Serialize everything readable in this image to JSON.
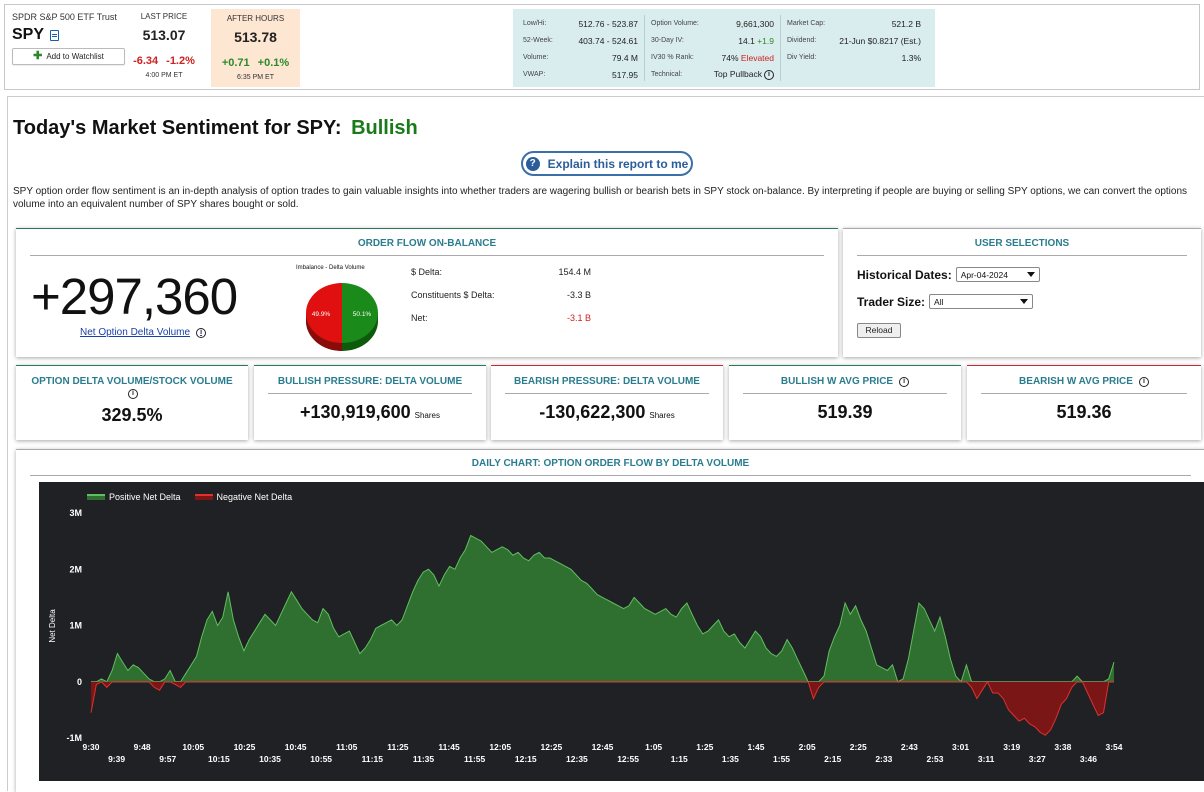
{
  "quote": {
    "name": "SPDR S&P 500 ETF Trust",
    "symbol": "SPY",
    "watchlist_label": "Add to Watchlist",
    "last": {
      "label": "LAST PRICE",
      "price": "513.07",
      "chg": "-6.34",
      "pct": "-1.2%",
      "time": "4:00 PM ET"
    },
    "after": {
      "label": "AFTER HOURS",
      "price": "513.78",
      "chg": "+0.71",
      "pct": "+0.1%",
      "time": "6:35 PM ET"
    },
    "stats": {
      "col1": [
        {
          "k": "Low/Hi:",
          "v": "512.76 - 523.87"
        },
        {
          "k": "52-Week:",
          "v": "403.74 - 524.61"
        },
        {
          "k": "Volume:",
          "v": "79.4 M"
        },
        {
          "k": "VWAP:",
          "v": "517.95"
        }
      ],
      "col2": [
        {
          "k": "Option Volume:",
          "v": "9,661,300"
        },
        {
          "k": "30-Day IV:",
          "v": "14.1",
          "v2": "+1.9"
        },
        {
          "k": "IV30 % Rank:",
          "v": "74%",
          "v2": "Elevated"
        },
        {
          "k": "Technical:",
          "v": "Top Pullback"
        }
      ],
      "col3": [
        {
          "k": "Market Cap:",
          "v": "521.2 B"
        },
        {
          "k": "Dividend:",
          "v": "21-Jun $0.8217 (Est.)"
        },
        {
          "k": "Div Yield:",
          "v": "1.3%"
        }
      ]
    },
    "colors": {
      "positive": "#2a8a2a",
      "negative": "#d02020",
      "after_hours_bg": "#fde6d2",
      "stats_bg": "#d9ecee"
    }
  },
  "page": {
    "title": "Today's Market Sentiment for SPY:",
    "sentiment": "Bullish",
    "explain_label": "Explain this report to me",
    "description": "SPY option order flow sentiment is an in-depth analysis of option trades to gain valuable insights into whether traders are wagering bullish or bearish bets in SPY stock on-balance. By interpreting if people are buying or selling SPY options, we can convert the options volume into an equivalent number of SPY shares bought or sold."
  },
  "order_flow": {
    "title": "ORDER FLOW ON-BALANCE",
    "big_value": "+297,360",
    "link_label": "Net Option Delta Volume",
    "pie_title": "Imbalance - Delta Volume",
    "pie": {
      "negative_pct": 49.9,
      "positive_pct": 50.1,
      "negative_label": "49.9%",
      "positive_label": "50.1%"
    },
    "rows": [
      {
        "k": "$ Delta:",
        "v": "154.4 M"
      },
      {
        "k": "Constituents $ Delta:",
        "v": "-3.3 B"
      },
      {
        "k": "Net:",
        "v": "-3.1 B"
      }
    ]
  },
  "user_selections": {
    "title": "USER SELECTIONS",
    "historical_label": "Historical Dates:",
    "historical_value": "Apr-04-2024",
    "trader_label": "Trader Size:",
    "trader_value": "All",
    "reload_label": "Reload"
  },
  "cards": [
    {
      "title": "OPTION DELTA VOLUME/STOCK VOLUME",
      "value": "329.5%",
      "unit": ""
    },
    {
      "title": "BULLISH PRESSURE: DELTA VOLUME",
      "value": "+130,919,600",
      "unit": "Shares"
    },
    {
      "title": "BEARISH PRESSURE: DELTA VOLUME",
      "value": "-130,622,300",
      "unit": "Shares"
    },
    {
      "title": "BULLISH W AVG PRICE",
      "value": "519.39",
      "unit": ""
    },
    {
      "title": "BEARISH W AVG PRICE",
      "value": "519.36",
      "unit": ""
    }
  ],
  "chart_title": "DAILY CHART: OPTION ORDER FLOW BY DELTA VOLUME",
  "chart_data": {
    "type": "area",
    "legend": [
      "Positive Net Delta",
      "Negative Net Delta"
    ],
    "ylabel": "Net Delta",
    "yticks": [
      "3M",
      "2M",
      "1M",
      "0",
      "-1M"
    ],
    "ylim": [
      -1000000,
      3000000
    ],
    "xticks_top": [
      "9:30",
      "9:48",
      "10:05",
      "10:25",
      "10:45",
      "11:05",
      "11:25",
      "11:45",
      "12:05",
      "12:25",
      "12:45",
      "1:05",
      "1:25",
      "1:45",
      "2:05",
      "2:25",
      "2:43",
      "3:01",
      "3:19",
      "3:38",
      "3:54"
    ],
    "xticks_bottom": [
      "9:39",
      "9:57",
      "10:15",
      "10:35",
      "10:55",
      "11:15",
      "11:35",
      "11:55",
      "12:15",
      "12:35",
      "12:55",
      "1:15",
      "1:35",
      "1:55",
      "2:15",
      "2:33",
      "2:53",
      "3:11",
      "3:27",
      "3:46"
    ],
    "colors": {
      "positive": "#2f6f2f",
      "negative": "#7a1616",
      "positive_line": "#5fbf5f",
      "negative_line": "#e03030"
    },
    "series": [
      {
        "name": "Net Delta",
        "points": [
          [
            0,
            -0.55
          ],
          [
            1,
            -0.05
          ],
          [
            2,
            0.05
          ],
          [
            3,
            -0.1
          ],
          [
            4,
            0.2
          ],
          [
            5,
            0.5
          ],
          [
            6,
            0.35
          ],
          [
            7,
            0.2
          ],
          [
            8,
            0.3
          ],
          [
            9,
            0.25
          ],
          [
            10,
            0.15
          ],
          [
            11,
            0.05
          ],
          [
            12,
            -0.1
          ],
          [
            13,
            -0.15
          ],
          [
            14,
            0.05
          ],
          [
            15,
            0.2
          ],
          [
            16,
            -0.05
          ],
          [
            17,
            -0.1
          ],
          [
            18,
            0.15
          ],
          [
            19,
            0.3
          ],
          [
            20,
            0.45
          ],
          [
            21,
            0.8
          ],
          [
            22,
            1.1
          ],
          [
            23,
            1.25
          ],
          [
            24,
            1.0
          ],
          [
            25,
            1.15
          ],
          [
            26,
            1.6
          ],
          [
            27,
            1.1
          ],
          [
            28,
            0.8
          ],
          [
            29,
            0.55
          ],
          [
            30,
            0.75
          ],
          [
            31,
            0.9
          ],
          [
            32,
            1.05
          ],
          [
            33,
            1.2
          ],
          [
            34,
            1.1
          ],
          [
            35,
            1.0
          ],
          [
            36,
            1.2
          ],
          [
            37,
            1.4
          ],
          [
            38,
            1.6
          ],
          [
            39,
            1.45
          ],
          [
            40,
            1.3
          ],
          [
            41,
            1.2
          ],
          [
            42,
            1.1
          ],
          [
            43,
            1.05
          ],
          [
            44,
            1.3
          ],
          [
            45,
            1.2
          ],
          [
            46,
            0.95
          ],
          [
            47,
            0.8
          ],
          [
            48,
            0.85
          ],
          [
            49,
            0.9
          ],
          [
            50,
            0.7
          ],
          [
            51,
            0.5
          ],
          [
            52,
            0.6
          ],
          [
            53,
            0.75
          ],
          [
            54,
            0.95
          ],
          [
            55,
            1.0
          ],
          [
            56,
            1.05
          ],
          [
            57,
            1.1
          ],
          [
            58,
            1.0
          ],
          [
            59,
            1.1
          ],
          [
            60,
            1.35
          ],
          [
            61,
            1.6
          ],
          [
            62,
            1.8
          ],
          [
            63,
            1.95
          ],
          [
            64,
            2.0
          ],
          [
            65,
            1.9
          ],
          [
            66,
            1.7
          ],
          [
            67,
            1.9
          ],
          [
            68,
            2.05
          ],
          [
            69,
            2.0
          ],
          [
            70,
            2.2
          ],
          [
            71,
            2.35
          ],
          [
            72,
            2.6
          ],
          [
            73,
            2.55
          ],
          [
            74,
            2.5
          ],
          [
            75,
            2.4
          ],
          [
            76,
            2.3
          ],
          [
            77,
            2.35
          ],
          [
            78,
            2.4
          ],
          [
            79,
            2.35
          ],
          [
            80,
            2.25
          ],
          [
            81,
            2.3
          ],
          [
            82,
            2.2
          ],
          [
            83,
            2.15
          ],
          [
            84,
            2.25
          ],
          [
            85,
            2.3
          ],
          [
            86,
            2.2
          ],
          [
            87,
            2.2
          ],
          [
            88,
            2.15
          ],
          [
            89,
            2.1
          ],
          [
            90,
            2.05
          ],
          [
            91,
            2.0
          ],
          [
            92,
            1.9
          ],
          [
            93,
            1.8
          ],
          [
            94,
            1.75
          ],
          [
            95,
            1.65
          ],
          [
            96,
            1.55
          ],
          [
            97,
            1.5
          ],
          [
            98,
            1.45
          ],
          [
            99,
            1.4
          ],
          [
            100,
            1.35
          ],
          [
            101,
            1.3
          ],
          [
            102,
            1.35
          ],
          [
            103,
            1.5
          ],
          [
            104,
            1.4
          ],
          [
            105,
            1.3
          ],
          [
            106,
            1.25
          ],
          [
            107,
            1.2
          ],
          [
            108,
            1.25
          ],
          [
            109,
            1.3
          ],
          [
            110,
            1.2
          ],
          [
            111,
            1.15
          ],
          [
            112,
            1.3
          ],
          [
            113,
            1.4
          ],
          [
            114,
            1.2
          ],
          [
            115,
            1.0
          ],
          [
            116,
            0.85
          ],
          [
            117,
            0.9
          ],
          [
            118,
            1.0
          ],
          [
            119,
            1.1
          ],
          [
            120,
            0.9
          ],
          [
            121,
            0.8
          ],
          [
            122,
            0.85
          ],
          [
            123,
            0.7
          ],
          [
            124,
            0.6
          ],
          [
            125,
            0.75
          ],
          [
            126,
            0.9
          ],
          [
            127,
            0.8
          ],
          [
            128,
            0.6
          ],
          [
            129,
            0.5
          ],
          [
            130,
            0.45
          ],
          [
            131,
            0.55
          ],
          [
            132,
            0.75
          ],
          [
            133,
            0.6
          ],
          [
            134,
            0.4
          ],
          [
            135,
            0.2
          ],
          [
            136,
            0.0
          ],
          [
            137,
            -0.3
          ],
          [
            138,
            -0.1
          ],
          [
            139,
            0.1
          ],
          [
            140,
            0.55
          ],
          [
            141,
            0.8
          ],
          [
            142,
            1.0
          ],
          [
            143,
            1.4
          ],
          [
            144,
            1.2
          ],
          [
            145,
            1.35
          ],
          [
            146,
            1.1
          ],
          [
            147,
            0.9
          ],
          [
            148,
            0.6
          ],
          [
            149,
            0.3
          ],
          [
            150,
            0.25
          ],
          [
            151,
            0.2
          ],
          [
            152,
            0.3
          ],
          [
            153,
            0.0
          ],
          [
            154,
            0.05
          ],
          [
            155,
            0.4
          ],
          [
            156,
            0.9
          ],
          [
            157,
            1.4
          ],
          [
            158,
            1.3
          ],
          [
            159,
            1.1
          ],
          [
            160,
            0.9
          ],
          [
            161,
            1.15
          ],
          [
            162,
            0.8
          ],
          [
            163,
            0.4
          ],
          [
            164,
            0.1
          ],
          [
            165,
            0.0
          ],
          [
            166,
            0.3
          ],
          [
            167,
            -0.1
          ],
          [
            168,
            -0.3
          ],
          [
            169,
            -0.15
          ],
          [
            170,
            0.0
          ],
          [
            171,
            -0.2
          ],
          [
            172,
            -0.2
          ],
          [
            173,
            -0.3
          ],
          [
            174,
            -0.5
          ],
          [
            175,
            -0.6
          ],
          [
            176,
            -0.7
          ],
          [
            177,
            -0.65
          ],
          [
            178,
            -0.75
          ],
          [
            179,
            -0.8
          ],
          [
            180,
            -0.9
          ],
          [
            181,
            -0.95
          ],
          [
            182,
            -0.85
          ],
          [
            183,
            -0.65
          ],
          [
            184,
            -0.4
          ],
          [
            185,
            -0.3
          ],
          [
            186,
            -0.1
          ],
          [
            187,
            0.1
          ],
          [
            188,
            0.0
          ],
          [
            189,
            -0.2
          ],
          [
            190,
            -0.4
          ],
          [
            191,
            -0.6
          ],
          [
            192,
            -0.55
          ],
          [
            193,
            0.05
          ],
          [
            194,
            0.35
          ]
        ]
      }
    ]
  }
}
